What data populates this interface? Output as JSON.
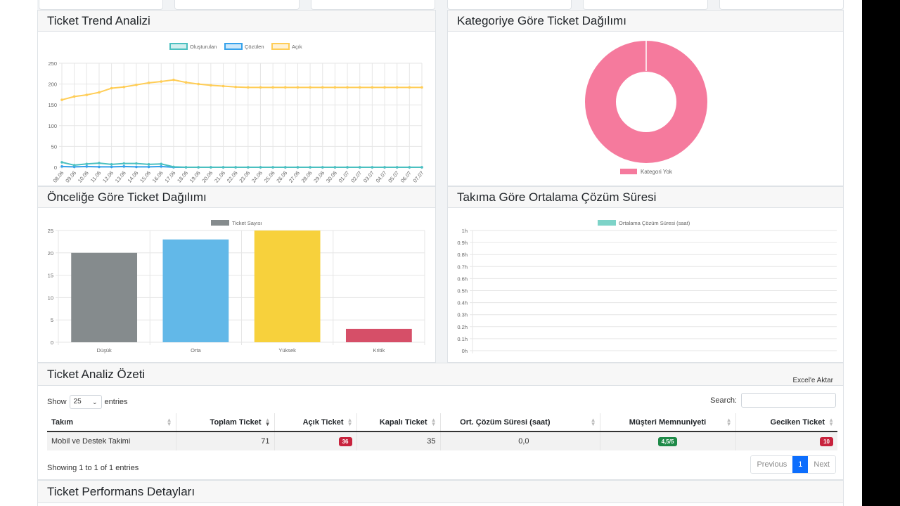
{
  "trend": {
    "title": "Ticket Trend Analizi",
    "legend": [
      "Oluşturulan",
      "Çözülen",
      "Açık"
    ],
    "colors": {
      "created": "#4bc0c0",
      "resolved": "#36a2eb",
      "open": "#ffcd56"
    }
  },
  "category": {
    "title": "Kategoriye Göre Ticket Dağılımı",
    "legend": "Kategori Yok",
    "color": "#f57a9d"
  },
  "priority": {
    "title": "Önceliğe Göre Ticket Dağılımı",
    "legend": "Ticket Sayısı"
  },
  "resolution": {
    "title": "Takıma Göre Ortalama Çözüm Süresi",
    "legend": "Ortalama Çözüm Süresi (saat)",
    "color": "#7dd3c8"
  },
  "summary": {
    "title": "Ticket Analiz Özeti",
    "export_label": "Excel'e Aktar",
    "show_label": "Show",
    "entries_value": "25",
    "entries_label": "entries",
    "search_label": "Search:",
    "search_placeholder": "",
    "columns": [
      "Takım",
      "Toplam Ticket",
      "Açık Ticket",
      "Kapalı Ticket",
      "Ort. Çözüm Süresi (saat)",
      "Müşteri Memnuniyeti",
      "Geciken Ticket"
    ],
    "rows": [
      {
        "team": "Mobil ve Destek Takimi",
        "total": "71",
        "open": "36",
        "closed": "35",
        "avg": "0,0",
        "satisfaction": "4,5/5",
        "late": "10"
      }
    ],
    "info": "Showing 1 to 1 of 1 entries",
    "pager": {
      "prev": "Previous",
      "page": "1",
      "next": "Next"
    }
  },
  "details": {
    "title": "Ticket Performans Detayları"
  },
  "chart_data": [
    {
      "type": "line",
      "title": "Ticket Trend Analizi",
      "x": [
        "08.06",
        "09.06",
        "10.06",
        "11.06",
        "12.06",
        "13.06",
        "14.06",
        "15.06",
        "16.06",
        "17.06",
        "18.06",
        "19.06",
        "20.06",
        "21.06",
        "22.06",
        "23.06",
        "24.06",
        "25.06",
        "26.06",
        "27.06",
        "28.06",
        "29.06",
        "30.06",
        "01.07",
        "02.07",
        "03.07",
        "04.07",
        "05.07",
        "06.07",
        "07.07"
      ],
      "yticks": [
        "250",
        "200",
        "150",
        "100",
        "50",
        "0"
      ],
      "ylim": [
        0,
        250
      ],
      "series": [
        {
          "name": "Oluşturulan",
          "values": [
            12,
            5,
            8,
            10,
            7,
            9,
            9,
            7,
            8,
            1,
            0,
            0,
            0,
            0,
            0,
            0,
            0,
            0,
            0,
            0,
            0,
            0,
            0,
            0,
            0,
            0,
            0,
            0,
            0,
            0
          ]
        },
        {
          "name": "Çözülen",
          "values": [
            2,
            1,
            2,
            1,
            1,
            2,
            1,
            1,
            2,
            0,
            0,
            0,
            0,
            0,
            0,
            0,
            0,
            0,
            0,
            0,
            0,
            0,
            0,
            0,
            0,
            0,
            0,
            0,
            0,
            0
          ]
        },
        {
          "name": "Açık",
          "values": [
            162,
            170,
            174,
            180,
            190,
            193,
            198,
            203,
            206,
            210,
            204,
            200,
            197,
            195,
            193,
            192,
            192,
            192,
            192,
            192,
            192,
            192,
            192,
            192,
            192,
            192,
            192,
            192,
            192,
            192
          ]
        }
      ]
    },
    {
      "type": "pie",
      "title": "Kategoriye Göre Ticket Dağılımı",
      "categories": [
        "Kategori Yok"
      ],
      "values": [
        100
      ]
    },
    {
      "type": "bar",
      "title": "Önceliğe Göre Ticket Dağılımı",
      "categories": [
        "Düşük",
        "Orta",
        "Yüksek",
        "Kritik"
      ],
      "series": [
        {
          "name": "Ticket Sayısı",
          "values": [
            20,
            23,
            25,
            3
          ]
        }
      ],
      "colors": [
        "#858b8d",
        "#62b8e8",
        "#f7d13c",
        "#d64f68"
      ],
      "yticks": [
        "25",
        "20",
        "15",
        "10",
        "5",
        "0"
      ],
      "ylim": [
        0,
        25
      ]
    },
    {
      "type": "bar",
      "title": "Takıma Göre Ortalama Çözüm Süresi",
      "categories": [],
      "series": [
        {
          "name": "Ortalama Çözüm Süresi (saat)",
          "values": []
        }
      ],
      "yticks": [
        "1h",
        "0.9h",
        "0.8h",
        "0.7h",
        "0.6h",
        "0.5h",
        "0.4h",
        "0.3h",
        "0.2h",
        "0.1h",
        "0h"
      ],
      "ylim": [
        0,
        1
      ]
    }
  ]
}
